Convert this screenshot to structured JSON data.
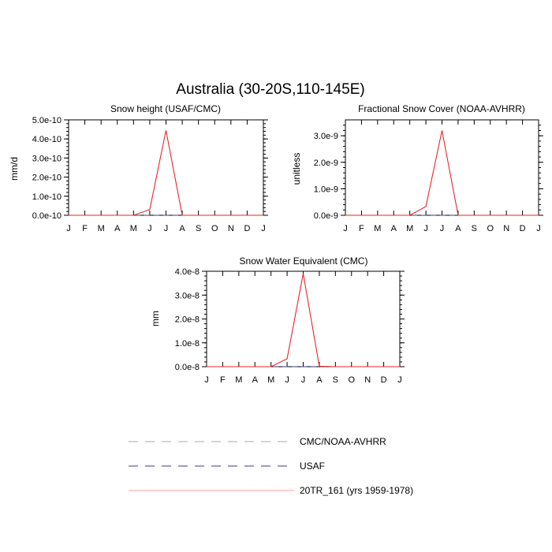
{
  "title": "Australia (30-20S,110-145E)",
  "months": [
    "J",
    "F",
    "M",
    "A",
    "M",
    "J",
    "J",
    "A",
    "S",
    "O",
    "N",
    "D",
    "J"
  ],
  "chart_data": [
    {
      "type": "line",
      "title": "Snow height (USAF/CMC)",
      "xlabel": "",
      "ylabel": "mm/d",
      "categories": [
        "J",
        "F",
        "M",
        "A",
        "M",
        "J",
        "J",
        "A",
        "S",
        "O",
        "N",
        "D",
        "J"
      ],
      "ylim": [
        0,
        5e-10
      ],
      "yticks": [
        "0.0e-10",
        "1.0e-10",
        "2.0e-10",
        "3.0e-10",
        "4.0e-10",
        "5.0e-10"
      ],
      "series": [
        {
          "name": "CMC/NOAA-AVHRR",
          "color": "#aaaaaa",
          "dash": true,
          "values": [
            0,
            0,
            0,
            0,
            0,
            0,
            0,
            0,
            0,
            0,
            0,
            0,
            0
          ]
        },
        {
          "name": "USAF",
          "color": "#3a3a8c",
          "dash": true,
          "values": [
            0,
            0,
            0,
            0,
            0,
            0,
            0,
            0,
            0,
            0,
            0,
            0,
            0
          ]
        },
        {
          "name": "20TR_161 (yrs 1959-1978)",
          "color": "#e8262a",
          "dash": false,
          "values": [
            0,
            0,
            0,
            0,
            0,
            3e-11,
            4.45e-10,
            0,
            0,
            0,
            0,
            0,
            0
          ]
        }
      ]
    },
    {
      "type": "line",
      "title": "Fractional Snow Cover (NOAA-AVHRR)",
      "xlabel": "",
      "ylabel": "unitless",
      "categories": [
        "J",
        "F",
        "M",
        "A",
        "M",
        "J",
        "J",
        "A",
        "S",
        "O",
        "N",
        "D",
        "J"
      ],
      "ylim": [
        0,
        3.6e-09
      ],
      "yticks": [
        "0.0e-9",
        "1.0e-9",
        "2.0e-9",
        "3.0e-9"
      ],
      "series": [
        {
          "name": "CMC/NOAA-AVHRR",
          "color": "#aaaaaa",
          "dash": true,
          "values": [
            0,
            0,
            0,
            0,
            0,
            0,
            0,
            0,
            0,
            0,
            0,
            0,
            0
          ]
        },
        {
          "name": "USAF",
          "color": "#3a3a8c",
          "dash": true,
          "values": [
            0,
            0,
            0,
            0,
            0,
            0,
            0,
            0,
            0,
            0,
            0,
            0,
            0
          ]
        },
        {
          "name": "20TR_161 (yrs 1959-1978)",
          "color": "#e8262a",
          "dash": false,
          "values": [
            0,
            0,
            0,
            0,
            0,
            3.3e-10,
            3.2e-09,
            0,
            0,
            0,
            0,
            0,
            0
          ]
        }
      ]
    },
    {
      "type": "line",
      "title": "Snow Water Equivalent (CMC)",
      "xlabel": "",
      "ylabel": "mm",
      "categories": [
        "J",
        "F",
        "M",
        "A",
        "M",
        "J",
        "J",
        "A",
        "S",
        "O",
        "N",
        "D",
        "J"
      ],
      "ylim": [
        0,
        4e-08
      ],
      "yticks": [
        "0.0e-8",
        "1.0e-8",
        "2.0e-8",
        "3.0e-8",
        "4.0e-8"
      ],
      "series": [
        {
          "name": "CMC/NOAA-AVHRR",
          "color": "#aaaaaa",
          "dash": true,
          "values": [
            0,
            0,
            0,
            0,
            0,
            0,
            0,
            0,
            0,
            0,
            0,
            0,
            0
          ]
        },
        {
          "name": "USAF",
          "color": "#3a3a8c",
          "dash": true,
          "values": [
            0,
            0,
            0,
            0,
            0,
            0,
            0,
            0,
            0,
            0,
            0,
            0,
            0
          ]
        },
        {
          "name": "20TR_161 (yrs 1959-1978)",
          "color": "#e8262a",
          "dash": false,
          "values": [
            0,
            0,
            0,
            0,
            0,
            3.3e-09,
            3.9e-08,
            2e-10,
            0,
            0,
            0,
            0,
            0
          ]
        }
      ]
    }
  ],
  "legend": {
    "placement": "bottom-center",
    "items": [
      {
        "label": "CMC/NOAA-AVHRR",
        "color": "#aaaaaa",
        "dash": true
      },
      {
        "label": "USAF",
        "color": "#3a3a8c",
        "dash": true
      },
      {
        "label": "20TR_161 (yrs 1959-1978)",
        "color": "#f4a0a0",
        "dash": false
      }
    ]
  }
}
